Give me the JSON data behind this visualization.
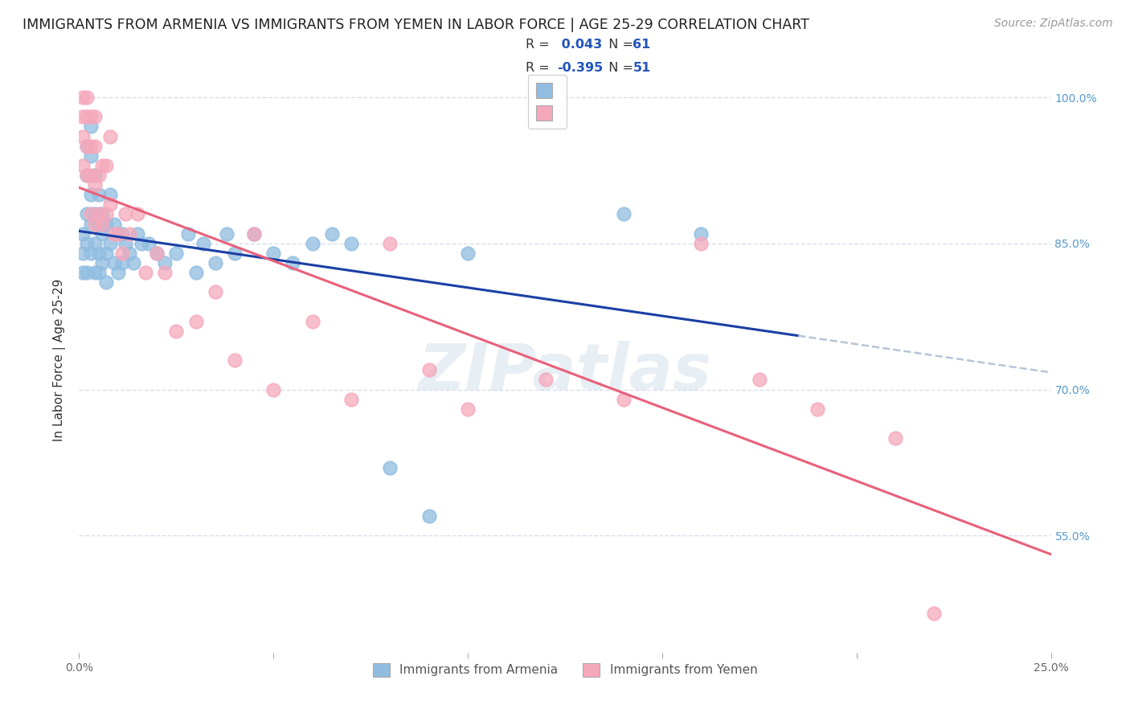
{
  "title": "IMMIGRANTS FROM ARMENIA VS IMMIGRANTS FROM YEMEN IN LABOR FORCE | AGE 25-29 CORRELATION CHART",
  "source": "Source: ZipAtlas.com",
  "ylabel": "In Labor Force | Age 25-29",
  "yticks": [
    55.0,
    70.0,
    85.0,
    100.0
  ],
  "ytick_labels": [
    "55.0%",
    "70.0%",
    "85.0%",
    "100.0%"
  ],
  "xlim": [
    0.0,
    0.25
  ],
  "ylim": [
    0.43,
    1.03
  ],
  "legend_R_armenia": "0.043",
  "legend_N_armenia": "61",
  "legend_R_yemen": "-0.395",
  "legend_N_yemen": "51",
  "armenia_color": "#90bde0",
  "yemen_color": "#f5a8bc",
  "armenia_line_color": "#1b3fa5",
  "yemen_line_color": "#e8607a",
  "dashed_line_color": "#b8c4d8",
  "background_color": "#ffffff",
  "watermark": "ZIPatlas",
  "armenia_x": [
    0.001,
    0.001,
    0.001,
    0.002,
    0.002,
    0.002,
    0.002,
    0.002,
    0.003,
    0.003,
    0.003,
    0.003,
    0.003,
    0.004,
    0.004,
    0.004,
    0.004,
    0.005,
    0.005,
    0.005,
    0.005,
    0.006,
    0.006,
    0.006,
    0.007,
    0.007,
    0.007,
    0.008,
    0.008,
    0.009,
    0.009,
    0.01,
    0.01,
    0.011,
    0.011,
    0.012,
    0.013,
    0.014,
    0.015,
    0.016,
    0.018,
    0.02,
    0.022,
    0.025,
    0.028,
    0.03,
    0.032,
    0.035,
    0.038,
    0.04,
    0.045,
    0.05,
    0.055,
    0.06,
    0.065,
    0.07,
    0.08,
    0.09,
    0.1,
    0.14,
    0.16
  ],
  "armenia_y": [
    0.86,
    0.84,
    0.82,
    0.95,
    0.92,
    0.88,
    0.85,
    0.82,
    0.97,
    0.94,
    0.9,
    0.87,
    0.84,
    0.92,
    0.88,
    0.85,
    0.82,
    0.9,
    0.87,
    0.84,
    0.82,
    0.88,
    0.86,
    0.83,
    0.87,
    0.84,
    0.81,
    0.9,
    0.85,
    0.87,
    0.83,
    0.86,
    0.82,
    0.86,
    0.83,
    0.85,
    0.84,
    0.83,
    0.86,
    0.85,
    0.85,
    0.84,
    0.83,
    0.84,
    0.86,
    0.82,
    0.85,
    0.83,
    0.86,
    0.84,
    0.86,
    0.84,
    0.83,
    0.85,
    0.86,
    0.85,
    0.62,
    0.57,
    0.84,
    0.88,
    0.86
  ],
  "yemen_x": [
    0.001,
    0.001,
    0.001,
    0.001,
    0.002,
    0.002,
    0.002,
    0.002,
    0.003,
    0.003,
    0.003,
    0.003,
    0.004,
    0.004,
    0.004,
    0.004,
    0.005,
    0.005,
    0.006,
    0.006,
    0.007,
    0.007,
    0.008,
    0.008,
    0.009,
    0.01,
    0.011,
    0.012,
    0.013,
    0.015,
    0.017,
    0.02,
    0.022,
    0.025,
    0.03,
    0.035,
    0.04,
    0.045,
    0.05,
    0.06,
    0.07,
    0.08,
    0.09,
    0.1,
    0.12,
    0.14,
    0.16,
    0.175,
    0.19,
    0.21,
    0.22
  ],
  "yemen_y": [
    1.0,
    0.98,
    0.96,
    0.93,
    1.0,
    0.98,
    0.95,
    0.92,
    0.98,
    0.95,
    0.92,
    0.88,
    0.98,
    0.95,
    0.91,
    0.87,
    0.92,
    0.88,
    0.93,
    0.87,
    0.93,
    0.88,
    0.89,
    0.96,
    0.86,
    0.86,
    0.84,
    0.88,
    0.86,
    0.88,
    0.82,
    0.84,
    0.82,
    0.76,
    0.77,
    0.8,
    0.73,
    0.86,
    0.7,
    0.77,
    0.69,
    0.85,
    0.72,
    0.68,
    0.71,
    0.69,
    0.85,
    0.71,
    0.68,
    0.65,
    0.47
  ],
  "grid_color": "#d4dcea",
  "title_fontsize": 12.5,
  "axis_label_fontsize": 11,
  "tick_fontsize": 10,
  "legend_fontsize": 12,
  "source_fontsize": 10
}
